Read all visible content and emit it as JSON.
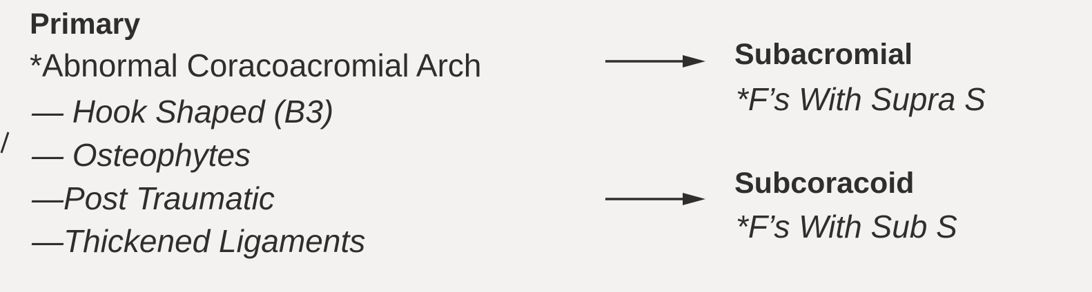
{
  "left": {
    "heading": "Primary",
    "cause": "*Abnormal Coracoacromial Arch",
    "subtypes": [
      "— Hook Shaped (B3)",
      "— Osteophytes",
      "—Post Traumatic",
      "—Thickened Ligaments"
    ]
  },
  "right": [
    {
      "title": "Subacromial",
      "detail": "*F’s With Supra S"
    },
    {
      "title": "Subcoracoid",
      "detail": "*F’s With Sub S"
    }
  ],
  "colors": {
    "text": "#2e2e2e",
    "background": "#f3f2f0",
    "arrow": "#2e2e2e"
  }
}
